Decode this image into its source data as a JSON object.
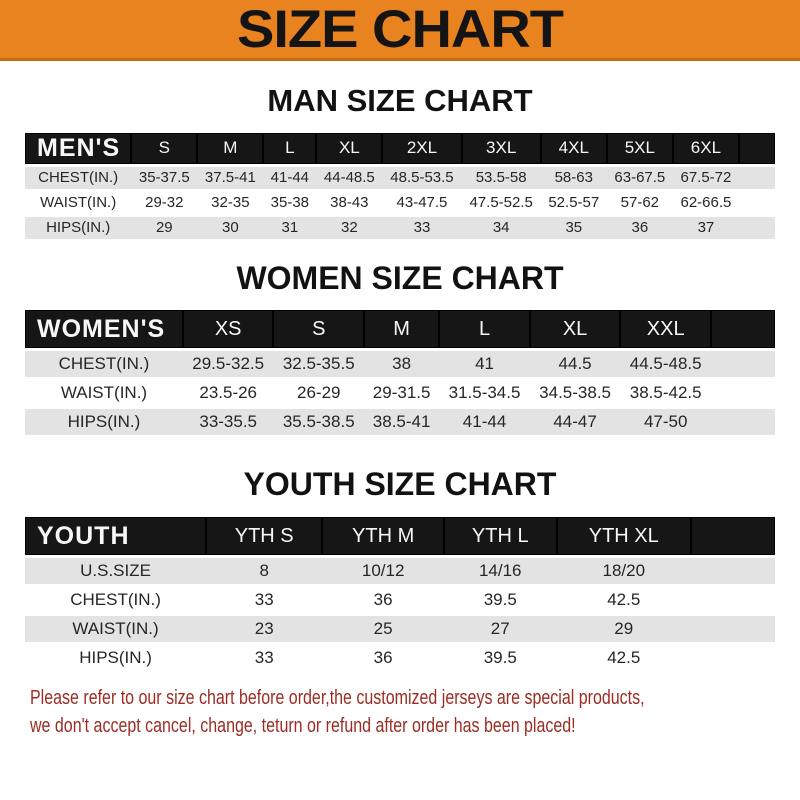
{
  "banner": {
    "title": "SIZE CHART"
  },
  "sections": [
    {
      "title": "MAN SIZE CHART",
      "table": {
        "group_label": "MEN'S",
        "columns": [
          "S",
          "M",
          "L",
          "XL",
          "2XL",
          "3XL",
          "4XL",
          "5XL",
          "6XL"
        ],
        "rows": [
          {
            "label": "CHEST(IN.)",
            "values": [
              "35-37.5",
              "37.5-41",
              "41-44",
              "44-48.5",
              "48.5-53.5",
              "53.5-58",
              "58-63",
              "63-67.5",
              "67.5-72"
            ]
          },
          {
            "label": "WAIST(IN.)",
            "values": [
              "29-32",
              "32-35",
              "35-38",
              "38-43",
              "43-47.5",
              "47.5-52.5",
              "52.5-57",
              "57-62",
              "62-66.5"
            ]
          },
          {
            "label": "HIPS(IN.)",
            "values": [
              "29",
              "30",
              "31",
              "32",
              "33",
              "34",
              "35",
              "36",
              "37"
            ]
          }
        ]
      }
    },
    {
      "title": "WOMEN SIZE CHART",
      "table": {
        "group_label": "WOMEN'S",
        "columns": [
          "XS",
          "S",
          "M",
          "L",
          "XL",
          "XXL"
        ],
        "rows": [
          {
            "label": "CHEST(IN.)",
            "values": [
              "29.5-32.5",
              "32.5-35.5",
              "38",
              "41",
              "44.5",
              "44.5-48.5"
            ]
          },
          {
            "label": "WAIST(IN.)",
            "values": [
              "23.5-26",
              "26-29",
              "29-31.5",
              "31.5-34.5",
              "34.5-38.5",
              "38.5-42.5"
            ]
          },
          {
            "label": "HIPS(IN.)",
            "values": [
              "33-35.5",
              "35.5-38.5",
              "38.5-41",
              "41-44",
              "44-47",
              "47-50"
            ]
          }
        ]
      }
    },
    {
      "title": "YOUTH SIZE CHART",
      "table": {
        "group_label": "YOUTH",
        "columns": [
          "YTH S",
          "YTH M",
          "YTH L",
          "YTH XL"
        ],
        "rows": [
          {
            "label": "U.S.SIZE",
            "values": [
              "8",
              "10/12",
              "14/16",
              "18/20"
            ]
          },
          {
            "label": "CHEST(IN.)",
            "values": [
              "33",
              "36",
              "39.5",
              "42.5"
            ]
          },
          {
            "label": "WAIST(IN.)",
            "values": [
              "23",
              "25",
              "27",
              "29"
            ]
          },
          {
            "label": "HIPS(IN.)",
            "values": [
              "33",
              "36",
              "39.5",
              "42.5"
            ]
          }
        ]
      }
    }
  ],
  "footer": {
    "line1": "Please refer to our size chart before order,the customized jerseys are special products,",
    "line2": "we don't accept cancel, change, teturn or refund after order has been placed!"
  },
  "colors": {
    "banner_orange": "#E8831F",
    "header_band": "#161616",
    "row_alt": "#E3E3E3",
    "footer_red": "#9C2B23"
  }
}
